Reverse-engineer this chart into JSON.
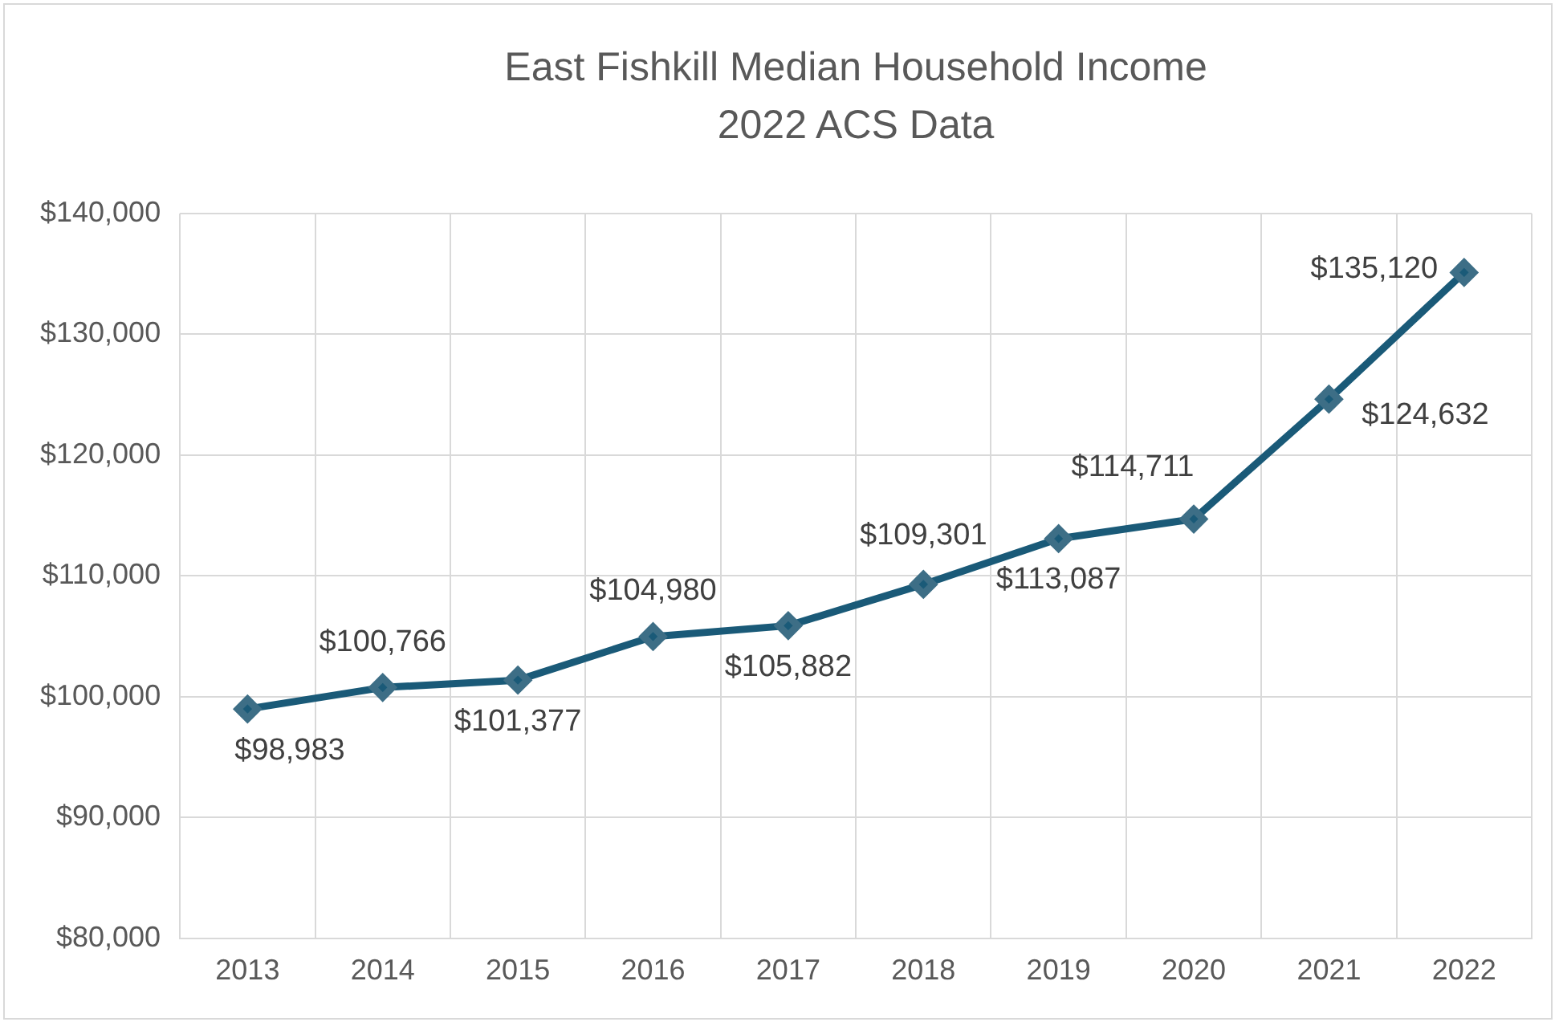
{
  "chart_data": {
    "type": "line",
    "title": [
      "East Fishkill Median Household Income",
      "2022 ACS Data"
    ],
    "categories": [
      "2013",
      "2014",
      "2015",
      "2016",
      "2017",
      "2018",
      "2019",
      "2020",
      "2021",
      "2022"
    ],
    "series": [
      {
        "color": "#1a5a78",
        "values": [
          98983,
          100766,
          101377,
          104980,
          105882,
          109301,
          113087,
          114711,
          124632,
          135120
        ],
        "value_labels": [
          "$98,983",
          "$100,766",
          "$101,377",
          "$104,980",
          "$105,882",
          "$109,301",
          "$113,087",
          "$114,711",
          "$124,632",
          "$135,120"
        ]
      }
    ],
    "ylim": [
      80000,
      140000
    ],
    "yticks": [
      {
        "value": 80000,
        "label": "$80,000"
      },
      {
        "value": 90000,
        "label": "$90,000"
      },
      {
        "value": 100000,
        "label": "$100,000"
      },
      {
        "value": 110000,
        "label": "$110,000"
      },
      {
        "value": 120000,
        "label": "$120,000"
      },
      {
        "value": 130000,
        "label": "$130,000"
      },
      {
        "value": 140000,
        "label": "$140,000"
      }
    ],
    "grid": true,
    "marker": "diamond",
    "line_style": "solid",
    "legend": false
  }
}
